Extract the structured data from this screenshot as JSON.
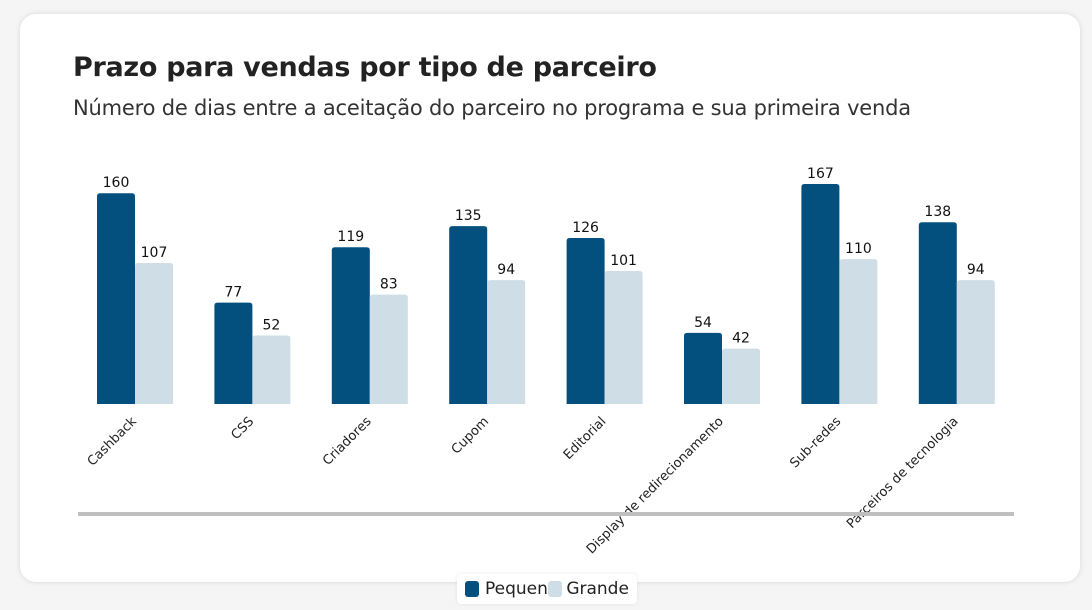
{
  "colors": {
    "pequeno": "#03507f",
    "grande": "#cfdde6",
    "baseline": "#bfbfbf"
  },
  "chart_data": {
    "type": "bar",
    "title": "Prazo para vendas por tipo de parceiro",
    "subtitle": "Número de dias entre a aceitação do parceiro no programa e sua primeira venda",
    "categories": [
      "Cashback",
      "CSS",
      "Criadores",
      "Cupom",
      "Editorial",
      "Display de redirecionamento",
      "Sub-redes",
      "Parceiros de tecnologia"
    ],
    "series": [
      {
        "name": "Pequeno",
        "values": [
          160,
          77,
          119,
          135,
          126,
          54,
          167,
          138
        ]
      },
      {
        "name": "Grande",
        "values": [
          107,
          52,
          83,
          94,
          101,
          42,
          110,
          94
        ]
      }
    ],
    "ylim": [
      0,
      167
    ],
    "grid": false,
    "legend_position": "bottom-center",
    "data_labels": true
  }
}
